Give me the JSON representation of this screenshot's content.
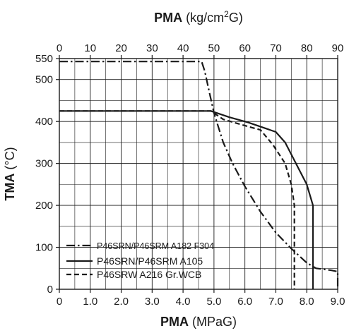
{
  "chart_data": {
    "type": "line",
    "top_axis": {
      "title_bold": "PMA",
      "title_rest": " (kg/cm",
      "title_sup": "2",
      "title_end": "G)",
      "ticks": [
        "0",
        "10",
        "20",
        "30",
        "40",
        "50",
        "60",
        "70",
        "80",
        "90"
      ],
      "range": [
        0,
        90
      ]
    },
    "x_axis": {
      "title_bold": "PMA",
      "title_rest": " (MPaG)",
      "ticks": [
        "0",
        "1.0",
        "2.0",
        "3.0",
        "4.0",
        "5.0",
        "6.0",
        "7.0",
        "8.0",
        "9.0"
      ],
      "tick_values": [
        0,
        1,
        2,
        3,
        4,
        5,
        6,
        7,
        8,
        9
      ],
      "range": [
        0,
        9
      ]
    },
    "y_axis": {
      "title_bold": "TMA",
      "title_rest": " (°C)",
      "ticks": [
        "0",
        "100",
        "200",
        "300",
        "400",
        "500",
        "550"
      ],
      "tick_values": [
        0,
        100,
        200,
        300,
        400,
        500,
        550
      ],
      "range": [
        0,
        550
      ]
    },
    "grid": true,
    "legend_position": "bottom-left",
    "series": [
      {
        "name": "P46SRN/P46SRM A182 F304",
        "style": "dashdot",
        "color": "#1a1a1a",
        "points": [
          [
            0,
            543
          ],
          [
            4.6,
            543
          ],
          [
            4.7,
            520
          ],
          [
            4.85,
            470
          ],
          [
            5.0,
            420
          ],
          [
            5.3,
            350
          ],
          [
            5.6,
            300
          ],
          [
            6.0,
            245
          ],
          [
            6.5,
            185
          ],
          [
            7.0,
            135
          ],
          [
            7.5,
            97
          ],
          [
            8.0,
            63
          ],
          [
            8.3,
            50
          ],
          [
            8.8,
            45
          ],
          [
            9.0,
            42
          ],
          [
            9.0,
            0
          ]
        ]
      },
      {
        "name": "P46SRN/P46SRM A105",
        "style": "solid",
        "color": "#1a1a1a",
        "points": [
          [
            0,
            425
          ],
          [
            4.9,
            425
          ],
          [
            5.5,
            410
          ],
          [
            6.1,
            398
          ],
          [
            7.0,
            375
          ],
          [
            7.3,
            350
          ],
          [
            8.0,
            250
          ],
          [
            8.2,
            200
          ],
          [
            8.2,
            0
          ]
        ]
      },
      {
        "name": "P46SRW A216 Gr.WCB",
        "style": "dashed",
        "color": "#1a1a1a",
        "points": [
          [
            0,
            425
          ],
          [
            4.9,
            425
          ],
          [
            5.3,
            405
          ],
          [
            6.0,
            390
          ],
          [
            6.5,
            380
          ],
          [
            6.9,
            345
          ],
          [
            7.3,
            300
          ],
          [
            7.5,
            250
          ],
          [
            7.6,
            200
          ],
          [
            7.6,
            0
          ]
        ]
      }
    ]
  }
}
